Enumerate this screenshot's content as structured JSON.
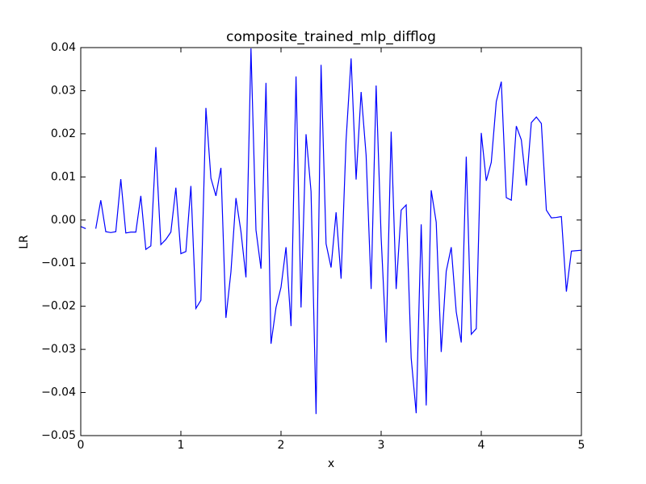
{
  "chart_data": {
    "type": "line",
    "title": "composite_trained_mlp_difflog",
    "x_label": "x",
    "y_label": "LR",
    "x": [
      0,
      0.05,
      0.1,
      0.15,
      0.2,
      0.25,
      0.3,
      0.35,
      0.4,
      0.45,
      0.5,
      0.55,
      0.6,
      0.65,
      0.7,
      0.75,
      0.8,
      0.85,
      0.9,
      0.95,
      1.0,
      1.05,
      1.1,
      1.15,
      1.2,
      1.25,
      1.3,
      1.35,
      1.4,
      1.45,
      1.5,
      1.55,
      1.6,
      1.65,
      1.7,
      1.75,
      1.8,
      1.85,
      1.9,
      1.95,
      2.0,
      2.05,
      2.1,
      2.15,
      2.2,
      2.25,
      2.3,
      2.35,
      2.4,
      2.45,
      2.5,
      2.55,
      2.6,
      2.65,
      2.7,
      2.75,
      2.8,
      2.85,
      2.9,
      2.95,
      3.0,
      3.05,
      3.1,
      3.15,
      3.2,
      3.25,
      3.3,
      3.35,
      3.4,
      3.45,
      3.5,
      3.55,
      3.6,
      3.65,
      3.7,
      3.75,
      3.8,
      3.85,
      3.9,
      3.95,
      4.0,
      4.05,
      4.1,
      4.15,
      4.2,
      4.25,
      4.3,
      4.35,
      4.4,
      4.45,
      4.5,
      4.55,
      4.6,
      4.65,
      4.7,
      4.75,
      4.8,
      4.85,
      4.9,
      4.95,
      5.0
    ],
    "series": [
      {
        "name": "LR",
        "color": "#0000ff",
        "values": [
          -0.0015,
          -0.002,
          null,
          -0.002,
          0.0046,
          -0.0027,
          -0.0029,
          -0.0027,
          0.0095,
          -0.003,
          -0.0028,
          -0.0028,
          0.0056,
          -0.0068,
          -0.006,
          0.0169,
          -0.0057,
          -0.0045,
          -0.0028,
          0.0075,
          -0.0078,
          -0.0073,
          0.0079,
          -0.0205,
          -0.0186,
          0.026,
          0.0097,
          0.0056,
          0.0121,
          -0.0227,
          -0.012,
          0.0051,
          -0.0027,
          -0.0133,
          0.0398,
          -0.0023,
          -0.0113,
          0.0318,
          -0.0287,
          -0.0203,
          -0.0156,
          -0.0063,
          -0.0246,
          0.0333,
          -0.0203,
          0.0199,
          0.0066,
          -0.045,
          0.036,
          -0.0055,
          -0.011,
          0.0018,
          -0.0136,
          0.0186,
          0.0375,
          0.0094,
          0.0297,
          0.015,
          -0.016,
          0.0312,
          -0.004,
          -0.0284,
          0.0205,
          -0.016,
          0.0023,
          0.0035,
          -0.032,
          -0.0448,
          -0.001,
          -0.043,
          0.0069,
          -0.0005,
          -0.0306,
          -0.0119,
          -0.0063,
          -0.0213,
          -0.0284,
          0.0147,
          -0.0265,
          -0.0252,
          0.0202,
          0.0091,
          0.0134,
          0.0275,
          0.0321,
          0.0052,
          0.0046,
          0.0218,
          0.0186,
          0.008,
          0.0226,
          0.0239,
          0.0224,
          0.0023,
          0.0005,
          0.0006,
          0.0008,
          -0.0166,
          -0.0072,
          -0.0071,
          -0.007
        ]
      }
    ],
    "xlim": [
      0,
      5
    ],
    "xticks": [
      0,
      1,
      2,
      3,
      4,
      5
    ],
    "ylim": [
      -0.05,
      0.04
    ],
    "yticks": [
      {
        "value": -0.05,
        "label": "−0.05"
      },
      {
        "value": -0.04,
        "label": "−0.04"
      },
      {
        "value": -0.03,
        "label": "−0.03"
      },
      {
        "value": -0.02,
        "label": "−0.02"
      },
      {
        "value": -0.01,
        "label": "−0.01"
      },
      {
        "value": 0,
        "label": "0.00"
      },
      0.01,
      0.02,
      0.03,
      0.04
    ],
    "grid": false
  }
}
